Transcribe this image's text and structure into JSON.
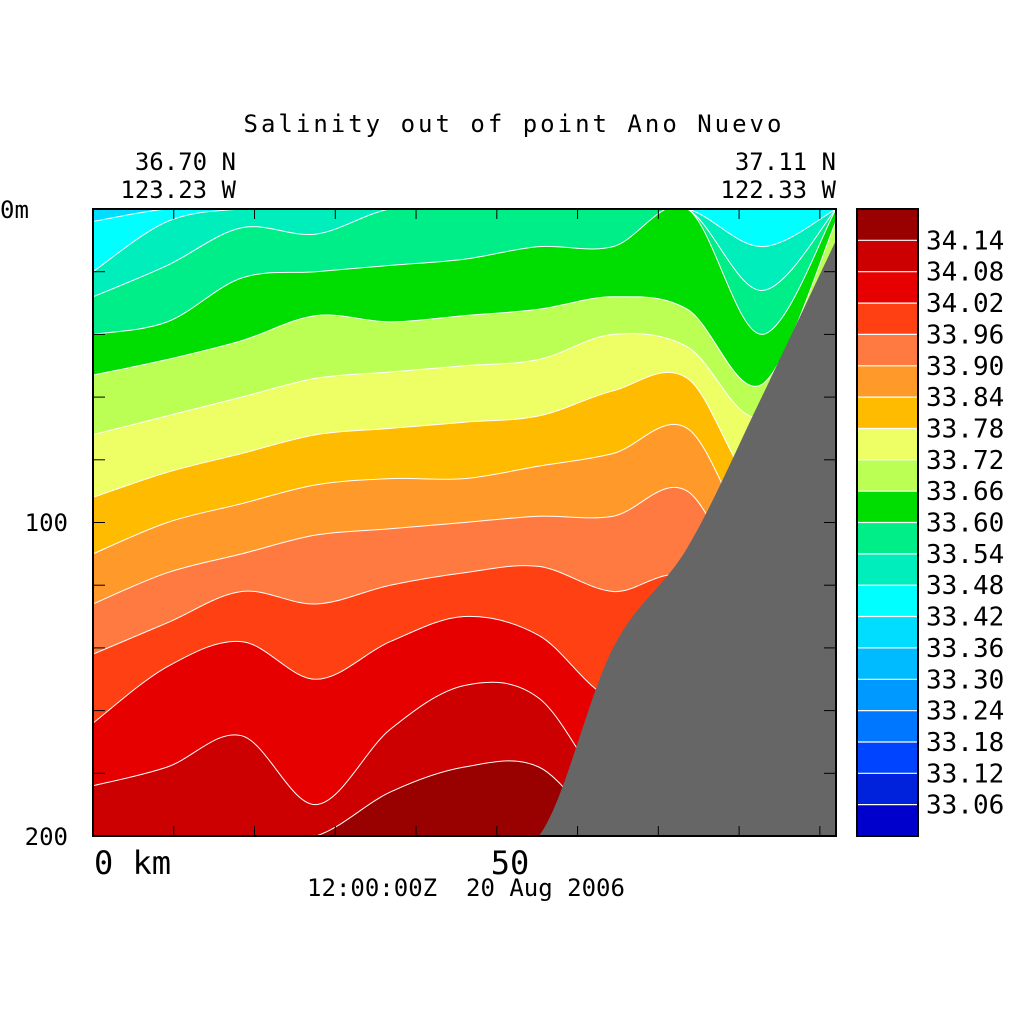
{
  "chart_data": {
    "type": "heatmap",
    "title": "Salinity out of point Ano Nuevo",
    "start_position": {
      "lat": "36.70 N",
      "lon": "123.23 W"
    },
    "end_position": {
      "lat": "37.11 N",
      "lon": "122.33 W"
    },
    "timestamp": "12:00:00Z  20 Aug 2006",
    "x_axis": {
      "range_km": [
        0,
        92
      ],
      "tick_labels": [
        {
          "value": 0,
          "label": "0 km"
        },
        {
          "value": 50,
          "label": "50"
        }
      ]
    },
    "y_axis": {
      "range_m": [
        0,
        200
      ],
      "inverted": true,
      "tick_labels": [
        {
          "value": 0,
          "label": "0m"
        },
        {
          "value": 100,
          "label": "100"
        },
        {
          "value": 200,
          "label": "200"
        }
      ]
    },
    "colorbar": {
      "levels": [
        "34.14",
        "34.08",
        "34.02",
        "33.96",
        "33.90",
        "33.84",
        "33.78",
        "33.72",
        "33.66",
        "33.60",
        "33.54",
        "33.48",
        "33.42",
        "33.36",
        "33.30",
        "33.24",
        "33.18",
        "33.12",
        "33.06"
      ],
      "colors": [
        "#990000",
        "#cc0000",
        "#e60000",
        "#ff4012",
        "#ff7a40",
        "#ff9a2a",
        "#ffbb00",
        "#eeff66",
        "#bbff55",
        "#00dd00",
        "#00ee88",
        "#00eebb",
        "#00ffff",
        "#00ddff",
        "#00bbff",
        "#0099ff",
        "#0077ff",
        "#0044ff",
        "#0022dd",
        "#0000cc"
      ]
    },
    "profile_boundaries_psu": [
      33.4,
      33.46,
      33.52,
      33.58,
      33.64,
      33.7,
      33.76,
      33.82,
      33.88,
      33.94,
      34.0,
      34.06,
      34.12
    ],
    "profile_depths_m": [
      [
        4,
        20,
        28,
        40,
        53,
        72,
        92,
        110,
        126,
        142,
        164,
        184,
        200
      ],
      [
        0,
        4,
        18,
        36,
        48,
        66,
        84,
        100,
        116,
        132,
        146,
        178,
        200
      ],
      [
        0,
        0,
        6,
        22,
        42,
        60,
        78,
        94,
        110,
        122,
        138,
        168,
        200
      ],
      [
        0,
        0,
        8,
        20,
        34,
        54,
        72,
        88,
        104,
        126,
        150,
        190,
        200
      ],
      [
        0,
        0,
        0,
        18,
        36,
        52,
        70,
        86,
        102,
        120,
        138,
        166,
        186
      ],
      [
        0,
        0,
        0,
        16,
        34,
        50,
        68,
        86,
        100,
        116,
        130,
        152,
        178
      ],
      [
        0,
        0,
        0,
        12,
        32,
        48,
        66,
        82,
        98,
        114,
        136,
        156,
        178
      ],
      [
        0,
        0,
        0,
        12,
        28,
        40,
        58,
        78,
        98,
        122,
        156,
        188,
        200
      ],
      [
        0,
        0,
        0,
        0,
        32,
        44,
        54,
        70,
        90,
        118,
        146,
        200,
        200
      ],
      [
        0,
        12,
        26,
        40,
        56,
        66,
        90,
        108,
        128,
        150,
        200,
        200,
        200
      ],
      [
        0,
        0,
        0,
        0,
        4,
        22,
        66,
        94,
        126,
        200,
        200,
        200,
        200
      ]
    ],
    "bathymetry_m": [
      200,
      200,
      200,
      200,
      200,
      200,
      200,
      140,
      108,
      60,
      10
    ],
    "grid": false
  }
}
